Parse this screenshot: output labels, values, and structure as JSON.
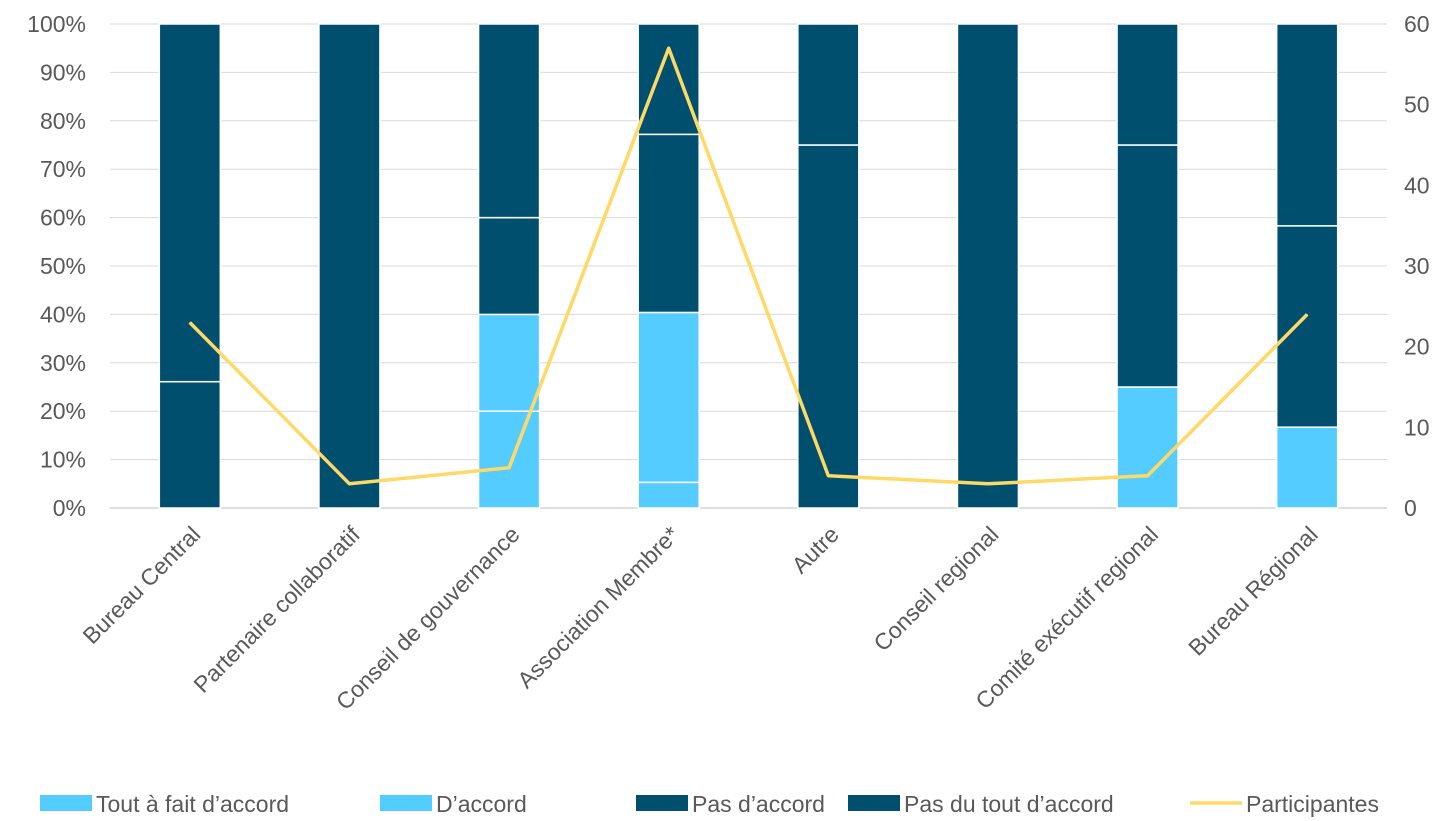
{
  "chart_data": {
    "type": "bar",
    "stacked": "percent",
    "categories": [
      "Bureau Central",
      "Partenaire collaboratif",
      "Conseil de gouvernance",
      "Association Membre*",
      "Autre",
      "Conseil regional",
      "Comité exécutif regional",
      "Bureau Régional"
    ],
    "series": [
      {
        "name": "Tout à fait d’accord",
        "color": "#55CCFF",
        "values": [
          0,
          0,
          20,
          5.3,
          0,
          0,
          0,
          0
        ]
      },
      {
        "name": "D’accord",
        "color": "#55CCFF",
        "values": [
          0,
          0,
          20,
          35.1,
          0,
          0,
          25,
          16.7
        ]
      },
      {
        "name": "Pas d’accord",
        "color": "#004F6E",
        "values": [
          26.1,
          100,
          20,
          36.8,
          75,
          100,
          50,
          41.6
        ]
      },
      {
        "name": "Pas du tout d’accord",
        "color": "#004F6E",
        "values": [
          73.9,
          0,
          40,
          22.8,
          25,
          0,
          25,
          41.7
        ]
      }
    ],
    "line_series": {
      "name": "Participantes",
      "color": "#FFD966",
      "axis": "right",
      "values": [
        23,
        3,
        5,
        57,
        4,
        3,
        4,
        24
      ]
    },
    "y_left": {
      "ylim": [
        0,
        100
      ],
      "ticks": [
        "0%",
        "10%",
        "20%",
        "30%",
        "40%",
        "50%",
        "60%",
        "70%",
        "80%",
        "90%",
        "100%"
      ]
    },
    "y_right": {
      "ylim": [
        0,
        60
      ],
      "ticks": [
        "0",
        "10",
        "20",
        "30",
        "40",
        "50",
        "60"
      ]
    },
    "grid": true,
    "legend_position": "bottom"
  }
}
